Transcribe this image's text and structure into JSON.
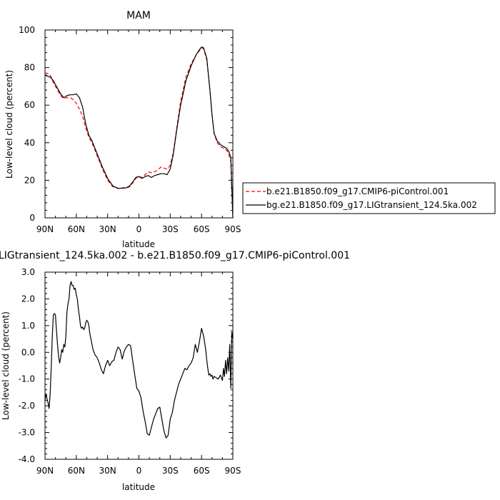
{
  "chart_data": [
    {
      "type": "line",
      "title": "MAM",
      "xlabel": "latitude",
      "ylabel": "Low-level cloud (percent)",
      "xlim": [
        90,
        -90
      ],
      "ylim": [
        0,
        100
      ],
      "xticks": [
        {
          "v": 90,
          "label": "90N"
        },
        {
          "v": 60,
          "label": "60N"
        },
        {
          "v": 30,
          "label": "30N"
        },
        {
          "v": 0,
          "label": "0"
        },
        {
          "v": -30,
          "label": "30S"
        },
        {
          "v": -60,
          "label": "60S"
        },
        {
          "v": -90,
          "label": "90S"
        }
      ],
      "yticks": [
        {
          "v": 0,
          "label": "0"
        },
        {
          "v": 20,
          "label": "20"
        },
        {
          "v": 40,
          "label": "40"
        },
        {
          "v": 60,
          "label": "60"
        },
        {
          "v": 80,
          "label": "80"
        },
        {
          "v": 100,
          "label": "100"
        }
      ],
      "legend_position": "right",
      "series": [
        {
          "name": "b.e21.B1850.f09_g17.CMIP6-piControl.001",
          "color": "#ff0000",
          "style": "dashed",
          "x": [
            90,
            88,
            85,
            82,
            78,
            75,
            72,
            69,
            66,
            63,
            60,
            57,
            54,
            51,
            48,
            45,
            40,
            35,
            30,
            25,
            20,
            15,
            12,
            9,
            6,
            3,
            0,
            -3,
            -6,
            -9,
            -12,
            -15,
            -18,
            -21,
            -24,
            -27,
            -30,
            -33,
            -36,
            -40,
            -45,
            -50,
            -55,
            -58,
            -60,
            -62,
            -65,
            -68,
            -70,
            -72,
            -75,
            -78,
            -81,
            -84,
            -86,
            -88,
            -89,
            -90
          ],
          "y": [
            77,
            77,
            76,
            72,
            68,
            65,
            63.5,
            64,
            64,
            63,
            61,
            58,
            54,
            48,
            43,
            40,
            33,
            26,
            20,
            16.5,
            15.7,
            16,
            16,
            16.5,
            18.5,
            21,
            22,
            21.5,
            23,
            24.5,
            24,
            24.5,
            25.5,
            27,
            26.5,
            26,
            28,
            35,
            47,
            62,
            75,
            82,
            87,
            89,
            90.5,
            90,
            84,
            68,
            55,
            45,
            40,
            38,
            37,
            36,
            34,
            30,
            15,
            0
          ]
        },
        {
          "name": "bg.e21.B1850.f09_g17.LIGtransient_124.5ka.002",
          "color": "#000000",
          "style": "solid",
          "x": [
            90,
            88,
            85,
            82,
            78,
            75,
            72,
            69,
            66,
            63,
            60,
            57,
            54,
            51,
            48,
            45,
            40,
            35,
            30,
            25,
            20,
            15,
            12,
            9,
            6,
            3,
            0,
            -3,
            -6,
            -9,
            -12,
            -15,
            -18,
            -21,
            -24,
            -27,
            -30,
            -33,
            -36,
            -40,
            -45,
            -50,
            -55,
            -58,
            -60,
            -62,
            -65,
            -68,
            -70,
            -72,
            -75,
            -78,
            -81,
            -84,
            -86,
            -88,
            -89,
            -90
          ],
          "y": [
            76,
            75.5,
            75,
            73,
            69,
            66,
            64,
            65,
            65.5,
            65.5,
            66,
            64,
            59,
            50,
            44,
            41,
            34,
            27,
            21,
            17,
            15.7,
            15.8,
            16,
            17,
            19,
            21.5,
            22,
            21,
            22,
            22.5,
            21.5,
            22.5,
            23,
            23.5,
            23.5,
            23,
            26,
            34,
            46,
            60,
            73,
            81,
            87,
            89.5,
            91,
            90.5,
            85,
            68,
            55,
            45,
            41,
            39,
            38,
            37,
            35.5,
            32,
            17,
            0
          ]
        }
      ]
    },
    {
      "type": "line",
      "title": "LIGtransient_124.5ka.002 - b.e21.B1850.f09_g17.CMIP6-piControl.001",
      "xlabel": "latitude",
      "ylabel": "Low-level cloud (percent)",
      "xlim": [
        90,
        -90
      ],
      "ylim": [
        -4,
        3
      ],
      "xticks": [
        {
          "v": 90,
          "label": "90N"
        },
        {
          "v": 60,
          "label": "60N"
        },
        {
          "v": 30,
          "label": "30N"
        },
        {
          "v": 0,
          "label": "0"
        },
        {
          "v": -30,
          "label": "30S"
        },
        {
          "v": -60,
          "label": "60S"
        },
        {
          "v": -90,
          "label": "90S"
        }
      ],
      "yticks": [
        {
          "v": -4,
          "label": "-4.0"
        },
        {
          "v": -3,
          "label": "-3.0"
        },
        {
          "v": -2,
          "label": "-2.0"
        },
        {
          "v": -1,
          "label": "-1.0"
        },
        {
          "v": 0,
          "label": "0.0"
        },
        {
          "v": 1,
          "label": "1.0"
        },
        {
          "v": 2,
          "label": "2.0"
        },
        {
          "v": 3,
          "label": "3.0"
        }
      ],
      "series": [
        {
          "color": "#000000",
          "style": "solid",
          "x": [
            90,
            89,
            88,
            87,
            86,
            85,
            84,
            83,
            82,
            81,
            80,
            79,
            78,
            77,
            76,
            75,
            74,
            73,
            72,
            71,
            70,
            69,
            68,
            67,
            66,
            65,
            64,
            63,
            62,
            61,
            60,
            59,
            58,
            57,
            56,
            55,
            54,
            53,
            52,
            51,
            50,
            49,
            48,
            47,
            46,
            45,
            44,
            43,
            42,
            41,
            40,
            38,
            36,
            34,
            32,
            30,
            28,
            26,
            24,
            22,
            20,
            18,
            16,
            14,
            12,
            10,
            8,
            6,
            4,
            2,
            0,
            -2,
            -4,
            -6,
            -8,
            -10,
            -12,
            -14,
            -16,
            -18,
            -20,
            -22,
            -24,
            -26,
            -28,
            -30,
            -32,
            -34,
            -36,
            -38,
            -40,
            -42,
            -44,
            -46,
            -48,
            -50,
            -52,
            -54,
            -56,
            -58,
            -60,
            -62,
            -64,
            -65,
            -66,
            -67,
            -68,
            -69,
            -70,
            -71,
            -72,
            -74,
            -76,
            -78,
            -80,
            -81,
            -82,
            -83,
            -84,
            -85,
            -86,
            -87,
            -88,
            -89,
            -90
          ],
          "y": [
            -1.8,
            -1.55,
            -1.75,
            -1.9,
            -2.1,
            -1.5,
            -0.5,
            0.6,
            1.4,
            1.45,
            1.4,
            0.8,
            0.3,
            -0.15,
            -0.4,
            -0.2,
            0.1,
            0.0,
            0.3,
            0.2,
            0.6,
            1.5,
            1.8,
            2.0,
            2.5,
            2.65,
            2.5,
            2.5,
            2.35,
            2.4,
            2.15,
            2.0,
            1.6,
            1.35,
            1.0,
            0.9,
            0.95,
            0.85,
            0.9,
            1.1,
            1.2,
            1.15,
            1.0,
            0.7,
            0.5,
            0.3,
            0.1,
            0.0,
            -0.1,
            -0.15,
            -0.2,
            -0.4,
            -0.65,
            -0.8,
            -0.5,
            -0.3,
            -0.5,
            -0.35,
            -0.3,
            0.0,
            0.2,
            0.1,
            -0.25,
            0.05,
            0.2,
            0.3,
            0.25,
            -0.3,
            -0.85,
            -1.35,
            -1.45,
            -1.7,
            -2.2,
            -2.6,
            -3.05,
            -3.1,
            -2.8,
            -2.5,
            -2.3,
            -2.1,
            -2.05,
            -2.5,
            -2.95,
            -3.2,
            -3.1,
            -2.5,
            -2.25,
            -1.8,
            -1.5,
            -1.2,
            -1.0,
            -0.8,
            -0.6,
            -0.65,
            -0.5,
            -0.4,
            -0.2,
            0.3,
            0.0,
            0.4,
            0.9,
            0.6,
            0.1,
            -0.3,
            -0.6,
            -0.85,
            -0.8,
            -0.9,
            -0.85,
            -1.0,
            -0.9,
            -0.95,
            -1.0,
            -0.85,
            -1.05,
            -0.6,
            -0.9,
            -0.3,
            -0.8,
            -0.2,
            -0.7,
            0.3,
            -1.35,
            0.75,
            0.5
          ]
        }
      ]
    }
  ]
}
